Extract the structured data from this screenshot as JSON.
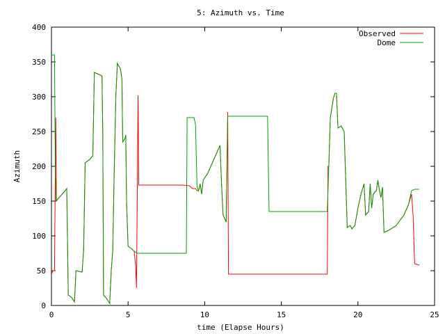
{
  "chart_data": {
    "type": "line",
    "title": "5: Azimuth vs. Time",
    "xlabel": "time (Elapse Hours)",
    "ylabel": "Azimuth",
    "xlim": [
      0,
      25
    ],
    "ylim": [
      0,
      400
    ],
    "xticks": [
      0,
      5,
      10,
      15,
      20,
      25
    ],
    "yticks": [
      0,
      50,
      100,
      150,
      200,
      250,
      300,
      350,
      400
    ],
    "xtick_labels": [
      "0",
      "5",
      "10",
      "15",
      "20",
      "25"
    ],
    "ytick_labels": [
      "0",
      "50",
      "100",
      "150",
      "200",
      "250",
      "300",
      "350",
      "400"
    ],
    "grid": false,
    "legend_position": "top-right",
    "series": [
      {
        "name": "Observed",
        "color": "#ff0000",
        "points": [
          [
            0.0,
            45
          ],
          [
            0.1,
            50
          ],
          [
            0.2,
            50
          ],
          [
            0.28,
            270
          ],
          [
            0.32,
            150
          ],
          [
            0.5,
            155
          ],
          [
            0.9,
            165
          ],
          [
            1.0,
            168
          ],
          [
            1.05,
            90
          ],
          [
            1.1,
            15
          ],
          [
            1.3,
            12
          ],
          [
            1.5,
            5
          ],
          [
            1.6,
            50
          ],
          [
            2.0,
            48
          ],
          [
            2.1,
            80
          ],
          [
            2.2,
            205
          ],
          [
            2.5,
            210
          ],
          [
            2.7,
            215
          ],
          [
            2.8,
            335
          ],
          [
            3.0,
            333
          ],
          [
            3.3,
            330
          ],
          [
            3.35,
            250
          ],
          [
            3.4,
            15
          ],
          [
            3.6,
            10
          ],
          [
            3.8,
            3
          ],
          [
            3.9,
            50
          ],
          [
            4.0,
            80
          ],
          [
            4.1,
            200
          ],
          [
            4.2,
            300
          ],
          [
            4.3,
            348
          ],
          [
            4.5,
            340
          ],
          [
            4.6,
            325
          ],
          [
            4.65,
            235
          ],
          [
            4.8,
            240
          ],
          [
            4.85,
            245
          ],
          [
            4.9,
            150
          ],
          [
            5.0,
            85
          ],
          [
            5.2,
            82
          ],
          [
            5.4,
            78
          ],
          [
            5.5,
            55
          ],
          [
            5.55,
            25
          ],
          [
            5.6,
            150
          ],
          [
            5.65,
            302
          ],
          [
            5.7,
            173
          ],
          [
            6.5,
            173
          ],
          [
            7.5,
            173
          ],
          [
            8.5,
            173
          ],
          [
            9.0,
            172
          ],
          [
            9.2,
            168
          ],
          [
            9.4,
            168
          ],
          [
            9.5,
            165
          ],
          [
            9.6,
            165
          ],
          [
            9.7,
            175
          ],
          [
            9.8,
            160
          ],
          [
            9.9,
            180
          ],
          [
            10.2,
            190
          ],
          [
            10.5,
            205
          ],
          [
            10.8,
            220
          ],
          [
            11.0,
            230
          ],
          [
            11.1,
            175
          ],
          [
            11.2,
            130
          ],
          [
            11.4,
            120
          ],
          [
            11.5,
            278
          ],
          [
            11.55,
            45
          ],
          [
            12.5,
            45
          ],
          [
            14.0,
            45
          ],
          [
            16.0,
            45
          ],
          [
            18.0,
            45
          ],
          [
            18.05,
            200
          ],
          [
            18.1,
            200
          ],
          [
            18.2,
            270
          ],
          [
            18.4,
            298
          ],
          [
            18.5,
            305
          ],
          [
            18.6,
            305
          ],
          [
            18.7,
            255
          ],
          [
            18.9,
            258
          ],
          [
            19.1,
            250
          ],
          [
            19.3,
            112
          ],
          [
            19.5,
            115
          ],
          [
            19.6,
            110
          ],
          [
            19.8,
            115
          ],
          [
            20.0,
            140
          ],
          [
            20.2,
            160
          ],
          [
            20.4,
            175
          ],
          [
            20.5,
            130
          ],
          [
            20.7,
            135
          ],
          [
            20.8,
            175
          ],
          [
            20.9,
            140
          ],
          [
            21.0,
            160
          ],
          [
            21.2,
            165
          ],
          [
            21.3,
            180
          ],
          [
            21.4,
            165
          ],
          [
            21.5,
            155
          ],
          [
            21.6,
            170
          ],
          [
            21.7,
            105
          ],
          [
            22.0,
            108
          ],
          [
            22.5,
            115
          ],
          [
            23.0,
            130
          ],
          [
            23.3,
            145
          ],
          [
            23.5,
            160
          ],
          [
            23.6,
            130
          ],
          [
            23.7,
            60
          ],
          [
            24.0,
            58
          ]
        ]
      },
      {
        "name": "Dome",
        "color": "#00a000",
        "points": [
          [
            0.0,
            360
          ],
          [
            0.1,
            360
          ],
          [
            0.2,
            360
          ],
          [
            0.25,
            200
          ],
          [
            0.3,
            150
          ],
          [
            0.5,
            155
          ],
          [
            0.9,
            165
          ],
          [
            1.0,
            168
          ],
          [
            1.05,
            90
          ],
          [
            1.1,
            15
          ],
          [
            1.3,
            12
          ],
          [
            1.5,
            5
          ],
          [
            1.6,
            50
          ],
          [
            2.0,
            48
          ],
          [
            2.1,
            80
          ],
          [
            2.2,
            205
          ],
          [
            2.5,
            210
          ],
          [
            2.7,
            215
          ],
          [
            2.8,
            335
          ],
          [
            3.0,
            333
          ],
          [
            3.3,
            330
          ],
          [
            3.35,
            250
          ],
          [
            3.4,
            15
          ],
          [
            3.6,
            10
          ],
          [
            3.8,
            3
          ],
          [
            3.9,
            50
          ],
          [
            4.0,
            80
          ],
          [
            4.1,
            200
          ],
          [
            4.2,
            300
          ],
          [
            4.3,
            348
          ],
          [
            4.5,
            340
          ],
          [
            4.6,
            325
          ],
          [
            4.65,
            235
          ],
          [
            4.8,
            240
          ],
          [
            4.85,
            245
          ],
          [
            4.9,
            150
          ],
          [
            5.0,
            85
          ],
          [
            5.2,
            82
          ],
          [
            5.4,
            78
          ],
          [
            5.6,
            75
          ],
          [
            6.5,
            75
          ],
          [
            8.0,
            75
          ],
          [
            8.8,
            75
          ],
          [
            8.85,
            270
          ],
          [
            9.3,
            270
          ],
          [
            9.4,
            260
          ],
          [
            9.5,
            170
          ],
          [
            9.6,
            165
          ],
          [
            9.7,
            175
          ],
          [
            9.8,
            160
          ],
          [
            9.9,
            180
          ],
          [
            10.2,
            190
          ],
          [
            10.5,
            205
          ],
          [
            10.8,
            220
          ],
          [
            11.0,
            230
          ],
          [
            11.1,
            175
          ],
          [
            11.2,
            130
          ],
          [
            11.4,
            120
          ],
          [
            11.5,
            272
          ],
          [
            12.5,
            272
          ],
          [
            14.1,
            272
          ],
          [
            14.2,
            135
          ],
          [
            16.0,
            135
          ],
          [
            18.0,
            135
          ],
          [
            18.1,
            200
          ],
          [
            18.2,
            270
          ],
          [
            18.4,
            298
          ],
          [
            18.5,
            305
          ],
          [
            18.6,
            305
          ],
          [
            18.7,
            255
          ],
          [
            18.9,
            258
          ],
          [
            19.1,
            250
          ],
          [
            19.3,
            112
          ],
          [
            19.5,
            115
          ],
          [
            19.6,
            110
          ],
          [
            19.8,
            115
          ],
          [
            20.0,
            140
          ],
          [
            20.2,
            160
          ],
          [
            20.4,
            175
          ],
          [
            20.5,
            130
          ],
          [
            20.7,
            135
          ],
          [
            20.8,
            175
          ],
          [
            20.9,
            140
          ],
          [
            21.0,
            160
          ],
          [
            21.2,
            165
          ],
          [
            21.3,
            180
          ],
          [
            21.4,
            165
          ],
          [
            21.5,
            155
          ],
          [
            21.6,
            170
          ],
          [
            21.7,
            105
          ],
          [
            22.0,
            108
          ],
          [
            22.5,
            115
          ],
          [
            23.0,
            130
          ],
          [
            23.3,
            145
          ],
          [
            23.5,
            165
          ],
          [
            23.7,
            167
          ],
          [
            24.0,
            167
          ]
        ]
      }
    ]
  }
}
